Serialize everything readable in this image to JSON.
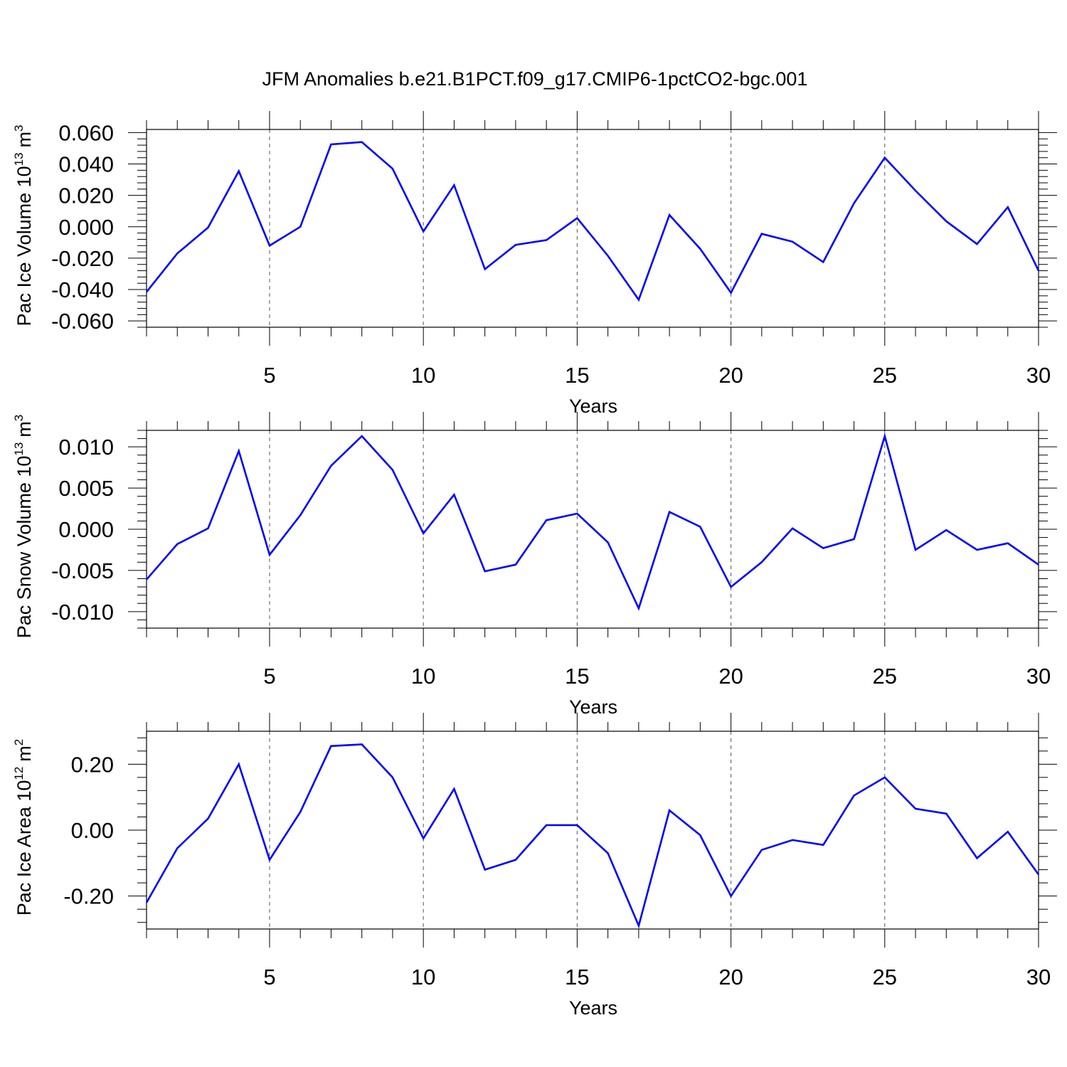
{
  "title": "JFM Anomalies b.e21.B1PCT.f09_g17.CMIP6-1pctCO2-bgc.001",
  "line_color": "#0000ff",
  "chart_data": [
    {
      "type": "line",
      "name": "pac-ice-volume",
      "ylabel": "Pac Ice Volume 10",
      "ylabel_exp": "13",
      "ylabel_unit": "m",
      "ylabel_unit_exp": "3",
      "xlabel": "Years",
      "xlim": [
        1,
        30
      ],
      "ylim": [
        -0.064,
        0.062
      ],
      "xticks": [
        5,
        10,
        15,
        20,
        25,
        30
      ],
      "xtick_labels": [
        "5",
        "10",
        "15",
        "20",
        "25",
        "30"
      ],
      "yticks": [
        -0.06,
        -0.04,
        -0.02,
        0.0,
        0.02,
        0.04,
        0.06
      ],
      "ytick_labels": [
        "-0.060",
        "-0.040",
        "-0.020",
        "0.000",
        "0.020",
        "0.040",
        "0.060"
      ],
      "yminor_step": 0.004,
      "x": [
        1,
        2,
        3,
        4,
        5,
        6,
        7,
        8,
        9,
        10,
        11,
        12,
        13,
        14,
        15,
        16,
        17,
        18,
        19,
        20,
        21,
        22,
        23,
        24,
        25,
        26,
        27,
        28,
        29,
        30
      ],
      "values": [
        -0.0415,
        -0.017,
        -0.0005,
        0.0355,
        -0.012,
        0.0,
        0.0525,
        0.054,
        0.037,
        -0.003,
        0.0265,
        -0.027,
        -0.0115,
        -0.0085,
        0.0055,
        -0.0185,
        -0.0465,
        0.0075,
        -0.014,
        -0.042,
        -0.0045,
        -0.0095,
        -0.0225,
        0.015,
        0.044,
        0.023,
        0.0035,
        -0.011,
        0.0125,
        -0.028
      ]
    },
    {
      "type": "line",
      "name": "pac-snow-volume",
      "ylabel": "Pac Snow Volume 10",
      "ylabel_exp": "13",
      "ylabel_unit": "m",
      "ylabel_unit_exp": "3",
      "xlabel": "Years",
      "xlim": [
        1,
        30
      ],
      "ylim": [
        -0.012,
        0.012
      ],
      "xticks": [
        5,
        10,
        15,
        20,
        25,
        30
      ],
      "xtick_labels": [
        "5",
        "10",
        "15",
        "20",
        "25",
        "30"
      ],
      "yticks": [
        -0.01,
        -0.005,
        0.0,
        0.005,
        0.01
      ],
      "ytick_labels": [
        "-0.010",
        "-0.005",
        "0.000",
        "0.005",
        "0.010"
      ],
      "yminor_step": 0.001,
      "x": [
        1,
        2,
        3,
        4,
        5,
        6,
        7,
        8,
        9,
        10,
        11,
        12,
        13,
        14,
        15,
        16,
        17,
        18,
        19,
        20,
        21,
        22,
        23,
        24,
        25,
        26,
        27,
        28,
        29,
        30
      ],
      "values": [
        -0.0061,
        -0.0018,
        0.0001,
        0.0095,
        -0.0031,
        0.0017,
        0.0077,
        0.0113,
        0.0072,
        -0.0005,
        0.0042,
        -0.0051,
        -0.0043,
        0.0011,
        0.0019,
        -0.0016,
        -0.0096,
        0.0021,
        0.0003,
        -0.007,
        -0.004,
        0.0001,
        -0.0023,
        -0.0012,
        0.0113,
        -0.0025,
        -0.0001,
        -0.0025,
        -0.0017,
        -0.0043
      ]
    },
    {
      "type": "line",
      "name": "pac-ice-area",
      "ylabel": "Pac Ice Area 10",
      "ylabel_exp": "12",
      "ylabel_unit": "m",
      "ylabel_unit_exp": "2",
      "xlabel": "Years",
      "xlim": [
        1,
        30
      ],
      "ylim": [
        -0.3,
        0.3
      ],
      "xticks": [
        5,
        10,
        15,
        20,
        25,
        30
      ],
      "xtick_labels": [
        "5",
        "10",
        "15",
        "20",
        "25",
        "30"
      ],
      "yticks": [
        -0.2,
        0.0,
        0.2
      ],
      "ytick_labels": [
        "-0.20",
        "0.00",
        "0.20"
      ],
      "yminor_step": 0.04,
      "x": [
        1,
        2,
        3,
        4,
        5,
        6,
        7,
        8,
        9,
        10,
        11,
        12,
        13,
        14,
        15,
        16,
        17,
        18,
        19,
        20,
        21,
        22,
        23,
        24,
        25,
        26,
        27,
        28,
        29,
        30
      ],
      "values": [
        -0.22,
        -0.055,
        0.035,
        0.2,
        -0.09,
        0.055,
        0.255,
        0.26,
        0.16,
        -0.025,
        0.125,
        -0.12,
        -0.09,
        0.015,
        0.015,
        -0.07,
        -0.29,
        0.06,
        -0.015,
        -0.2,
        -0.06,
        -0.03,
        -0.045,
        0.105,
        0.16,
        0.065,
        0.05,
        -0.085,
        -0.005,
        -0.135
      ]
    }
  ]
}
